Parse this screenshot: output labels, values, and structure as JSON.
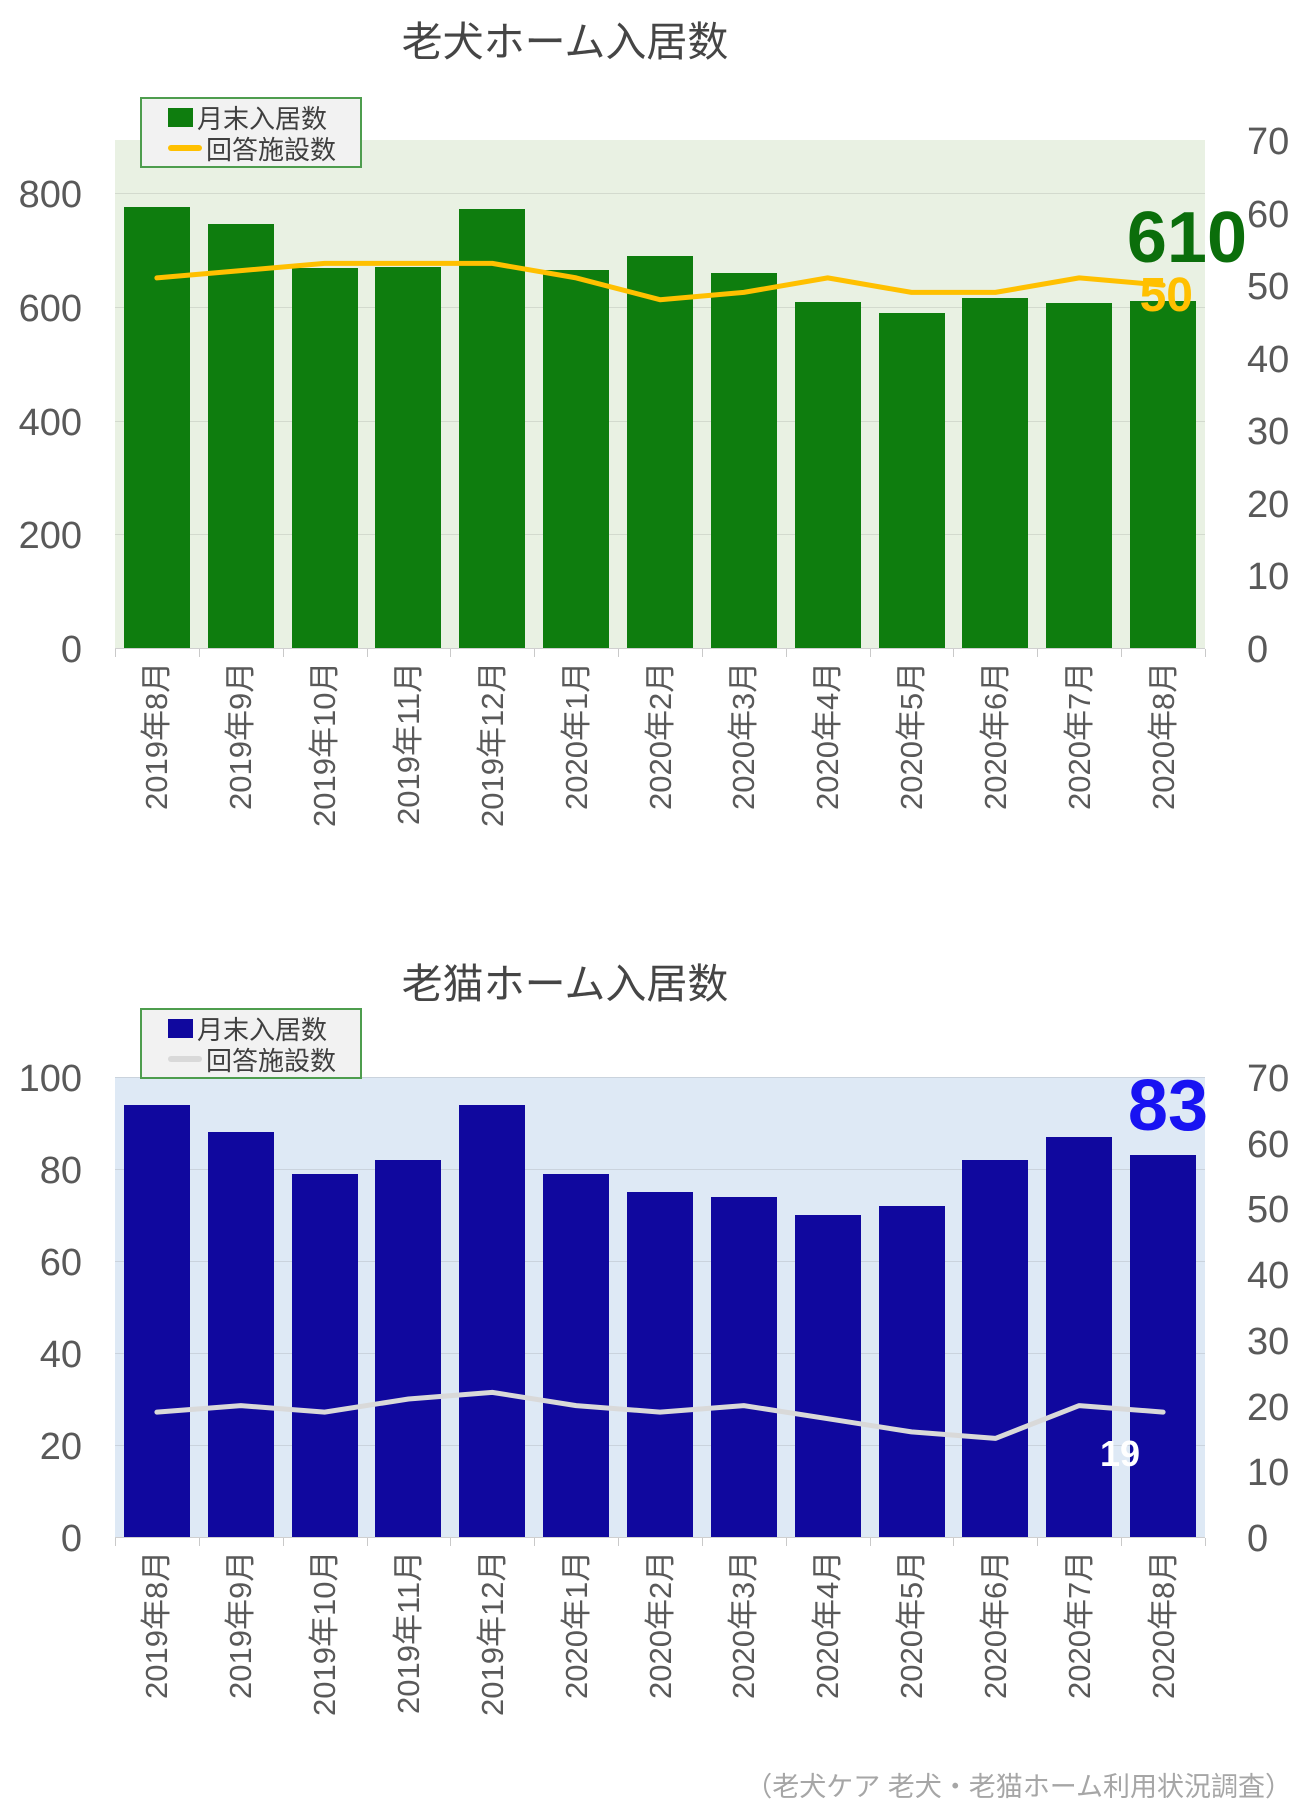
{
  "footer": "（老犬ケア 老犬・老猫ホーム利用状況調査）",
  "chart_data": [
    {
      "type": "bar",
      "subtype": "bar-line-combo",
      "title": "老犬ホーム入居数",
      "legend": {
        "bar": "月末入居数",
        "line": "回答施設数",
        "position": "top-left"
      },
      "categories": [
        "2019年8月",
        "2019年9月",
        "2019年10月",
        "2019年11月",
        "2019年12月",
        "2020年1月",
        "2020年2月",
        "2020年3月",
        "2020年4月",
        "2020年5月",
        "2020年6月",
        "2020年7月",
        "2020年8月"
      ],
      "series": [
        {
          "name": "月末入居数",
          "type": "bar",
          "axis": "left",
          "values": [
            775,
            745,
            668,
            670,
            772,
            664,
            690,
            660,
            608,
            590,
            615,
            606,
            610
          ]
        },
        {
          "name": "回答施設数",
          "type": "line",
          "axis": "right",
          "values": [
            51,
            52,
            53,
            53,
            53,
            51,
            48,
            49,
            51,
            49,
            49,
            51,
            50
          ]
        }
      ],
      "left_axis": {
        "ticks": [
          0,
          200,
          400,
          600,
          800
        ],
        "range": [
          0,
          893.5
        ]
      },
      "right_axis": {
        "ticks": [
          0,
          10,
          20,
          30,
          40,
          50,
          60,
          70
        ],
        "range": [
          0,
          70
        ]
      },
      "end_labels": {
        "bar": "610",
        "line": "50"
      },
      "grid": true,
      "colors": {
        "bar": "#0E7D0E",
        "line": "#FFC000",
        "plot_bg": "#E9F1E3",
        "bar_end_label": "#0B6E0B",
        "line_end_label": "#FFC000"
      }
    },
    {
      "type": "bar",
      "subtype": "bar-line-combo",
      "title": "老猫ホーム入居数",
      "legend": {
        "bar": "月末入居数",
        "line": "回答施設数",
        "position": "top-left"
      },
      "categories": [
        "2019年8月",
        "2019年9月",
        "2019年10月",
        "2019年11月",
        "2019年12月",
        "2020年1月",
        "2020年2月",
        "2020年3月",
        "2020年4月",
        "2020年5月",
        "2020年6月",
        "2020年7月",
        "2020年8月"
      ],
      "series": [
        {
          "name": "月末入居数",
          "type": "bar",
          "axis": "left",
          "values": [
            94,
            88,
            79,
            82,
            94,
            79,
            75,
            74,
            70,
            72,
            82,
            87,
            83
          ]
        },
        {
          "name": "回答施設数",
          "type": "line",
          "axis": "right",
          "values": [
            19,
            20,
            19,
            21,
            22,
            20,
            19,
            20,
            18,
            16,
            15,
            20,
            19
          ]
        }
      ],
      "left_axis": {
        "ticks": [
          0,
          20,
          40,
          60,
          80,
          100
        ],
        "range": [
          0,
          100
        ]
      },
      "right_axis": {
        "ticks": [
          0,
          10,
          20,
          30,
          40,
          50,
          60,
          70
        ],
        "range": [
          0,
          70
        ]
      },
      "end_labels": {
        "bar": "83",
        "line": "19"
      },
      "grid": true,
      "colors": {
        "bar": "#10089E",
        "line": "#D9D9D9",
        "plot_bg": "#DEE9F5",
        "bar_end_label": "#1813F2",
        "line_end_label": "#FFFFFF"
      }
    }
  ]
}
